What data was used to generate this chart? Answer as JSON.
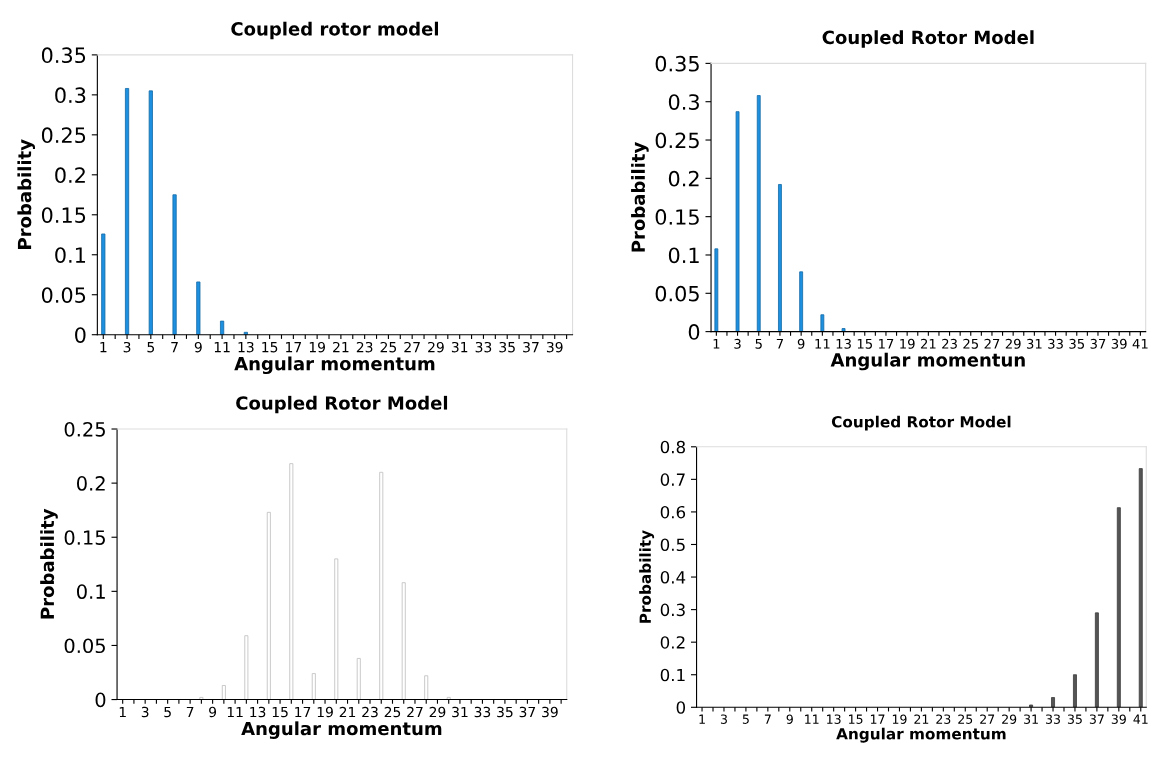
{
  "chart_data": [
    {
      "type": "bar",
      "title": "Coupled rotor model",
      "xlabel": "Angular momentum",
      "ylabel": "Probability",
      "categories": [
        "1",
        null,
        "3",
        null,
        "5",
        null,
        "7",
        null,
        "9",
        null,
        "11",
        null,
        "13",
        null,
        "15",
        null,
        "17",
        null,
        "19",
        null,
        "21",
        null,
        "23",
        null,
        "25",
        null,
        "27",
        null,
        "29",
        null,
        "31",
        null,
        "33",
        null,
        "35",
        null,
        "37",
        null,
        "39",
        null
      ],
      "values": [
        0.126,
        0,
        0.308,
        0,
        0.305,
        0,
        0.175,
        0,
        0.066,
        0,
        0.017,
        0,
        0.003,
        0,
        0,
        0,
        0,
        0,
        0,
        0,
        0,
        0,
        0,
        0,
        0,
        0,
        0,
        0,
        0,
        0,
        0,
        0,
        0,
        0,
        0,
        0,
        0,
        0,
        0,
        0
      ],
      "color": "#1e90e0",
      "ylim": [
        0,
        0.35
      ],
      "yticks": [
        0,
        0.05,
        0.1,
        0.15,
        0.2,
        0.25,
        0.3,
        0.35
      ],
      "grid": false
    },
    {
      "type": "bar",
      "title": "Coupled Rotor Model",
      "xlabel": "Angular momentun",
      "ylabel": "Probability",
      "categories": [
        "1",
        null,
        "3",
        null,
        "5",
        null,
        "7",
        null,
        "9",
        null,
        "11",
        null,
        "13",
        null,
        "15",
        null,
        "17",
        null,
        "19",
        null,
        "21",
        null,
        "23",
        null,
        "25",
        null,
        "27",
        null,
        "29",
        null,
        "31",
        null,
        "33",
        null,
        "35",
        null,
        "37",
        null,
        "39",
        null,
        "41"
      ],
      "values": [
        0.108,
        0,
        0.287,
        0,
        0.308,
        0,
        0.192,
        0,
        0.078,
        0,
        0.022,
        0,
        0.004,
        0,
        0,
        0,
        0,
        0,
        0,
        0,
        0,
        0,
        0,
        0,
        0,
        0,
        0,
        0,
        0,
        0,
        0,
        0,
        0,
        0,
        0,
        0,
        0,
        0,
        0,
        0,
        0
      ],
      "color": "#1e90e0",
      "ylim": [
        0,
        0.35
      ],
      "yticks": [
        0,
        0.05,
        0.1,
        0.15,
        0.2,
        0.25,
        0.3,
        0.35
      ],
      "grid": false
    },
    {
      "type": "bar",
      "title": "Coupled Rotor Model",
      "xlabel": "Angular momentum",
      "ylabel": "Probability",
      "categories": [
        "1",
        null,
        "3",
        null,
        "5",
        null,
        "7",
        null,
        "9",
        null,
        "11",
        null,
        "13",
        null,
        "15",
        null,
        "17",
        null,
        "19",
        null,
        "21",
        null,
        "23",
        null,
        "25",
        null,
        "27",
        null,
        "29",
        null,
        "31",
        null,
        "33",
        null,
        "35",
        null,
        "37",
        null,
        "39",
        null
      ],
      "values": [
        0,
        0,
        0,
        0,
        0,
        0,
        0,
        0.002,
        0,
        0.013,
        0,
        0.059,
        0,
        0.173,
        0,
        0.218,
        0,
        0.024,
        0,
        0.13,
        0,
        0.038,
        0,
        0.21,
        0,
        0.108,
        0,
        0.022,
        0,
        0.002,
        0,
        0,
        0,
        0,
        0,
        0,
        0,
        0,
        0,
        0
      ],
      "color": "#ffffff",
      "ylim": [
        0,
        0.25
      ],
      "yticks": [
        0,
        0.05,
        0.1,
        0.15,
        0.2,
        0.25
      ],
      "grid": false
    },
    {
      "type": "bar",
      "title": "Coupled Rotor Model",
      "xlabel": "Angular momentum",
      "ylabel": "Probability",
      "categories": [
        "1",
        null,
        "3",
        null,
        "5",
        null,
        "7",
        null,
        "9",
        null,
        "11",
        null,
        "13",
        null,
        "15",
        null,
        "17",
        null,
        "19",
        null,
        "21",
        null,
        "23",
        null,
        "25",
        null,
        "27",
        null,
        "29",
        null,
        "31",
        null,
        "33",
        null,
        "35",
        null,
        "37",
        null,
        "39",
        null,
        "41"
      ],
      "values": [
        0,
        0,
        0,
        0,
        0,
        0,
        0,
        0,
        0,
        0,
        0,
        0,
        0,
        0,
        0,
        0,
        0,
        0,
        0,
        0,
        0,
        0,
        0,
        0,
        0,
        0,
        0,
        0,
        0,
        0,
        0.007,
        0,
        0.03,
        0,
        0.1,
        0,
        0.29,
        0,
        0.613,
        0,
        0.733
      ],
      "color": "#555555",
      "ylim": [
        0,
        0.8
      ],
      "yticks": [
        0,
        0.1,
        0.2,
        0.3,
        0.4,
        0.5,
        0.6,
        0.7,
        0.8
      ],
      "grid": false
    }
  ]
}
